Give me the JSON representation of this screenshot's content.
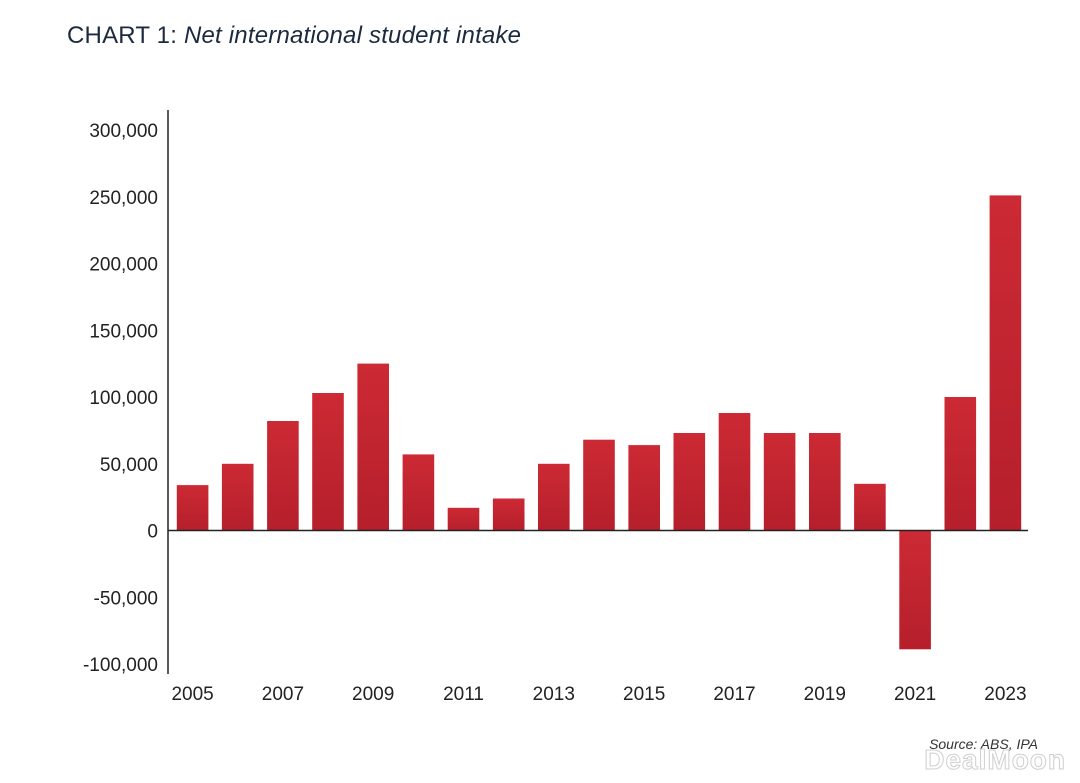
{
  "title_prefix": "CHART 1: ",
  "title_main": "Net international student intake",
  "source": "Source: ABS, IPA",
  "watermark": "DealMoon",
  "colors": {
    "bar": "#b51f2b",
    "bar_light": "#cc2a34",
    "axis": "#222222"
  },
  "chart_data": {
    "type": "bar",
    "title": "CHART 1: Net international student intake",
    "xlabel": "",
    "ylabel": "",
    "categories": [
      "2005",
      "2006",
      "2007",
      "2008",
      "2009",
      "2010",
      "2011",
      "2012",
      "2013",
      "2014",
      "2015",
      "2016",
      "2017",
      "2018",
      "2019",
      "2020",
      "2021",
      "2022",
      "2023"
    ],
    "values": [
      34000,
      50000,
      82000,
      103000,
      125000,
      57000,
      17000,
      24000,
      50000,
      68000,
      64000,
      73000,
      88000,
      73000,
      73000,
      35000,
      -89000,
      100000,
      251000
    ],
    "ylim": [
      -100000,
      300000
    ],
    "yticks": [
      300000,
      250000,
      200000,
      150000,
      100000,
      50000,
      0,
      -50000,
      -100000
    ],
    "ytick_labels": [
      "300,000",
      "250,000",
      "200,000",
      "150,000",
      "100,000",
      "50,000",
      "0",
      "-50,000",
      "-100,000"
    ],
    "xtick_labels": [
      "2005",
      "2007",
      "2009",
      "2011",
      "2013",
      "2015",
      "2017",
      "2019",
      "2021",
      "2023"
    ],
    "grid": false,
    "legend": "none"
  }
}
